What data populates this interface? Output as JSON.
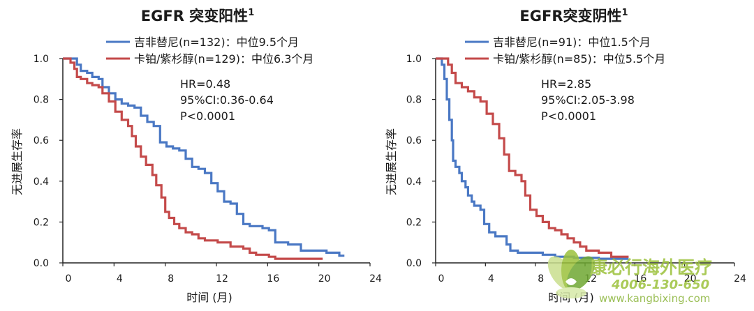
{
  "chart_data": [
    {
      "type": "line",
      "title": "EGFR 突变阳性",
      "title_sup": "1",
      "xlabel": "时间 (月)",
      "ylabel": "无进展生存率",
      "xlim": [
        0,
        24
      ],
      "ylim": [
        0,
        1.0
      ],
      "x_ticks": [
        "0",
        "4",
        "8",
        "12",
        "16",
        "20",
        "24"
      ],
      "y_ticks": [
        "0.0",
        "0.2",
        "0.4",
        "0.6",
        "0.8",
        "1.0"
      ],
      "grid": false,
      "legend_position": "top",
      "stats": [
        "HR=0.48",
        "95%CI:0.36-0.64",
        "P<0.0001"
      ],
      "series": [
        {
          "name": "吉非替尼(n=132)：中位9.5个月",
          "color": "#4a78c4",
          "step_points": [
            [
              0,
              1.0
            ],
            [
              0.6,
              1.0
            ],
            [
              1.1,
              0.97
            ],
            [
              1.4,
              0.94
            ],
            [
              1.9,
              0.93
            ],
            [
              2.3,
              0.91
            ],
            [
              2.8,
              0.9
            ],
            [
              3.1,
              0.86
            ],
            [
              3.6,
              0.83
            ],
            [
              4.1,
              0.8
            ],
            [
              4.6,
              0.78
            ],
            [
              5.1,
              0.77
            ],
            [
              5.6,
              0.76
            ],
            [
              6.1,
              0.72
            ],
            [
              6.6,
              0.69
            ],
            [
              7.1,
              0.67
            ],
            [
              7.6,
              0.59
            ],
            [
              8.1,
              0.57
            ],
            [
              8.6,
              0.56
            ],
            [
              9.1,
              0.55
            ],
            [
              9.6,
              0.51
            ],
            [
              10.1,
              0.47
            ],
            [
              10.6,
              0.46
            ],
            [
              11.1,
              0.44
            ],
            [
              11.6,
              0.39
            ],
            [
              12.1,
              0.35
            ],
            [
              12.6,
              0.3
            ],
            [
              13.1,
              0.29
            ],
            [
              13.6,
              0.24
            ],
            [
              14.1,
              0.19
            ],
            [
              14.6,
              0.18
            ],
            [
              15.6,
              0.17
            ],
            [
              16.1,
              0.16
            ],
            [
              16.6,
              0.1
            ],
            [
              17.6,
              0.09
            ],
            [
              18.6,
              0.06
            ],
            [
              20.6,
              0.05
            ],
            [
              21.6,
              0.035
            ],
            [
              22.0,
              0.035
            ]
          ]
        },
        {
          "name": "卡铂/紫杉醇(n=129)：中位6.3个月",
          "color": "#c44a4a",
          "step_points": [
            [
              0,
              1.0
            ],
            [
              0.6,
              0.98
            ],
            [
              0.9,
              0.95
            ],
            [
              1.1,
              0.91
            ],
            [
              1.4,
              0.9
            ],
            [
              1.9,
              0.88
            ],
            [
              2.3,
              0.87
            ],
            [
              2.8,
              0.86
            ],
            [
              3.1,
              0.83
            ],
            [
              3.6,
              0.79
            ],
            [
              4.1,
              0.74
            ],
            [
              4.6,
              0.7
            ],
            [
              5.1,
              0.67
            ],
            [
              5.4,
              0.62
            ],
            [
              5.7,
              0.57
            ],
            [
              6.1,
              0.52
            ],
            [
              6.5,
              0.48
            ],
            [
              7.0,
              0.43
            ],
            [
              7.3,
              0.38
            ],
            [
              7.7,
              0.32
            ],
            [
              8.0,
              0.25
            ],
            [
              8.3,
              0.22
            ],
            [
              8.7,
              0.19
            ],
            [
              9.1,
              0.17
            ],
            [
              9.6,
              0.15
            ],
            [
              10.1,
              0.14
            ],
            [
              10.6,
              0.12
            ],
            [
              11.1,
              0.11
            ],
            [
              12.1,
              0.1
            ],
            [
              13.1,
              0.08
            ],
            [
              14.1,
              0.07
            ],
            [
              14.6,
              0.05
            ],
            [
              15.1,
              0.04
            ],
            [
              16.1,
              0.03
            ],
            [
              16.6,
              0.02
            ],
            [
              20.3,
              0.02
            ]
          ]
        }
      ]
    },
    {
      "type": "line",
      "title": "EGFR突变阴性",
      "title_sup": "1",
      "xlabel": "时间 (月)",
      "ylabel": "无进展生存率",
      "xlim": [
        0,
        24
      ],
      "ylim": [
        0,
        1.0
      ],
      "x_ticks": [
        "0",
        "4",
        "8",
        "12",
        "16",
        "20",
        "24"
      ],
      "y_ticks": [
        "0.0",
        "0.2",
        "0.4",
        "0.6",
        "0.8",
        "1.0"
      ],
      "grid": false,
      "legend_position": "top",
      "stats": [
        "HR=2.85",
        "95%CI:2.05-3.98",
        "P<0.0001"
      ],
      "series": [
        {
          "name": "吉非替尼(n=91)：中位1.5个月",
          "color": "#4a78c4",
          "step_points": [
            [
              0,
              1.0
            ],
            [
              0.5,
              0.97
            ],
            [
              0.7,
              0.9
            ],
            [
              0.9,
              0.8
            ],
            [
              1.1,
              0.7
            ],
            [
              1.3,
              0.6
            ],
            [
              1.4,
              0.5
            ],
            [
              1.6,
              0.47
            ],
            [
              1.9,
              0.44
            ],
            [
              2.1,
              0.4
            ],
            [
              2.4,
              0.37
            ],
            [
              2.6,
              0.33
            ],
            [
              2.9,
              0.3
            ],
            [
              3.1,
              0.28
            ],
            [
              3.6,
              0.26
            ],
            [
              3.9,
              0.19
            ],
            [
              4.3,
              0.15
            ],
            [
              4.8,
              0.13
            ],
            [
              5.7,
              0.09
            ],
            [
              6.0,
              0.06
            ],
            [
              6.6,
              0.05
            ],
            [
              7.6,
              0.05
            ],
            [
              8.6,
              0.04
            ],
            [
              9.6,
              0.03
            ],
            [
              11.1,
              0.025
            ],
            [
              13.1,
              0.02
            ],
            [
              15.5,
              0.02
            ]
          ]
        },
        {
          "name": "卡铂/紫杉醇(n=85)：中位5.5个月",
          "color": "#c44a4a",
          "step_points": [
            [
              0,
              1.0
            ],
            [
              0.5,
              1.0
            ],
            [
              1.0,
              0.97
            ],
            [
              1.3,
              0.93
            ],
            [
              1.6,
              0.88
            ],
            [
              2.1,
              0.86
            ],
            [
              2.6,
              0.84
            ],
            [
              3.1,
              0.81
            ],
            [
              3.6,
              0.79
            ],
            [
              4.1,
              0.73
            ],
            [
              4.6,
              0.68
            ],
            [
              5.1,
              0.61
            ],
            [
              5.5,
              0.53
            ],
            [
              5.9,
              0.45
            ],
            [
              6.4,
              0.43
            ],
            [
              6.9,
              0.4
            ],
            [
              7.2,
              0.33
            ],
            [
              7.6,
              0.26
            ],
            [
              8.1,
              0.23
            ],
            [
              8.6,
              0.2
            ],
            [
              9.1,
              0.17
            ],
            [
              9.6,
              0.16
            ],
            [
              10.1,
              0.14
            ],
            [
              10.6,
              0.12
            ],
            [
              11.1,
              0.1
            ],
            [
              11.6,
              0.08
            ],
            [
              12.1,
              0.06
            ],
            [
              13.1,
              0.05
            ],
            [
              14.1,
              0.03
            ],
            [
              15.5,
              0.03
            ]
          ]
        }
      ]
    }
  ],
  "watermark": {
    "brand": "康必行海外医疗",
    "phone": "4006-130-650",
    "url": "www.kangbixing.com"
  }
}
